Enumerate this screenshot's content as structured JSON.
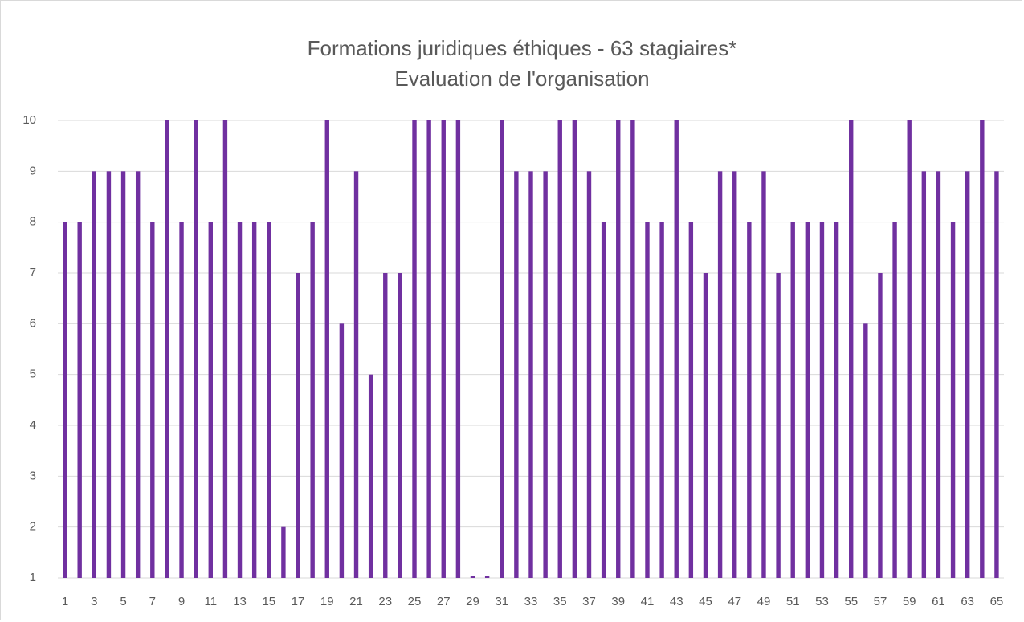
{
  "chart_data": {
    "type": "bar",
    "title": "Formations juridiques éthiques - 63 stagiaires*",
    "subtitle": "Evaluation de l'organisation",
    "categories": [
      "1",
      null,
      "3",
      null,
      "5",
      null,
      "7",
      null,
      "9",
      null,
      "11",
      null,
      "13",
      null,
      "15",
      null,
      "17",
      null,
      "19",
      null,
      "21",
      null,
      "23",
      null,
      "25",
      null,
      "27",
      null,
      "29",
      null,
      "31",
      null,
      "33",
      null,
      "35",
      null,
      "37",
      null,
      "39",
      null,
      "41",
      null,
      "43",
      null,
      "45",
      null,
      "47",
      null,
      "49",
      null,
      "51",
      null,
      "53",
      null,
      "55",
      null,
      "57",
      null,
      "59",
      null,
      "61",
      null,
      "63",
      null,
      "65"
    ],
    "values": [
      8,
      8,
      9,
      9,
      9,
      9,
      8,
      10,
      8,
      10,
      8,
      10,
      8,
      8,
      8,
      2,
      7,
      8,
      10,
      6,
      9,
      5,
      7,
      7,
      10,
      10,
      10,
      10,
      1,
      1,
      10,
      9,
      9,
      9,
      10,
      10,
      9,
      8,
      10,
      10,
      8,
      8,
      10,
      8,
      7,
      9,
      9,
      8,
      9,
      7,
      8,
      8,
      8,
      8,
      10,
      6,
      7,
      8,
      10,
      9,
      9,
      8,
      9,
      10,
      9
    ],
    "color": "#7030a0",
    "ylim": [
      1,
      10
    ],
    "yticks": [
      1,
      2,
      3,
      4,
      5,
      6,
      7,
      8,
      9,
      10
    ],
    "grid": true
  }
}
